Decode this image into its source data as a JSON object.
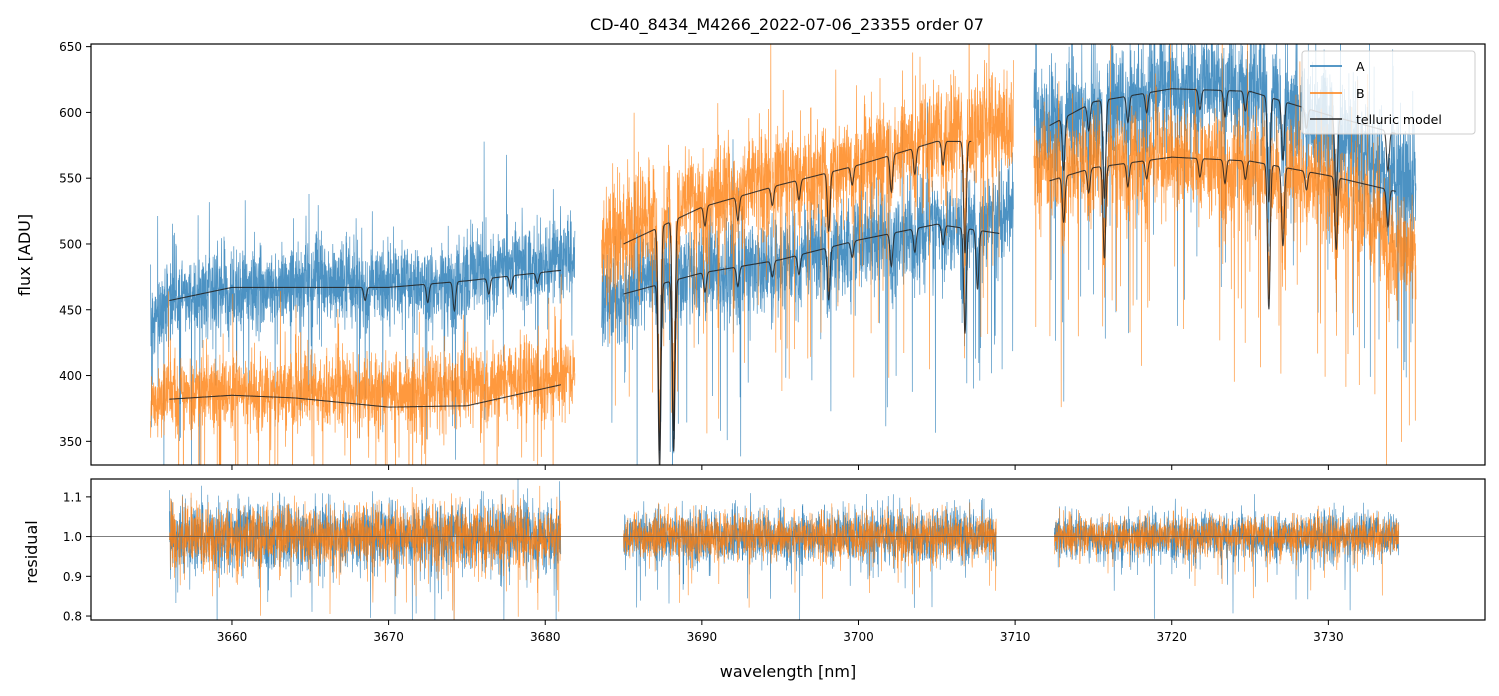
{
  "colors": {
    "A": "#1f77b4",
    "B": "#ff7f0e",
    "model": "#222222",
    "residual_ref": "#555555"
  },
  "chart_data": [
    {
      "id": "flux",
      "type": "line",
      "title": "CD-40_8434_M4266_2022-07-06_23355  order 07",
      "xlabel": "",
      "ylabel": "flux [ADU]",
      "xlim": [
        3651,
        3740
      ],
      "ylim": [
        332,
        652
      ],
      "xticks": [
        3660,
        3670,
        3680,
        3690,
        3700,
        3710,
        3720,
        3730
      ],
      "yticks": [
        350,
        400,
        450,
        500,
        550,
        600,
        650
      ],
      "xtick_labels_shown": false,
      "legend": {
        "placement": "top-right",
        "entries": [
          {
            "label": "A",
            "series": "A"
          },
          {
            "label": "B",
            "series": "B"
          },
          {
            "label": "telluric model",
            "series": "model"
          }
        ]
      },
      "segments": [
        {
          "x_start": 3654.8,
          "x_end": 3681.9,
          "A": {
            "level": [
              [
                3654.8,
                440
              ],
              [
                3656,
                460
              ],
              [
                3665,
                470
              ],
              [
                3672,
                470
              ],
              [
                3681.9,
                492
              ]
            ],
            "noise": 16,
            "spikes_up": 9,
            "spikes_down": 16
          },
          "B": {
            "level": [
              [
                3654.8,
                372
              ],
              [
                3656,
                388
              ],
              [
                3664,
                388
              ],
              [
                3672,
                388
              ],
              [
                3681.9,
                400
              ]
            ],
            "noise": 14,
            "spikes_up": 8,
            "spikes_down": 18
          },
          "model_A": {
            "x_start": 3656,
            "x_end": 3681,
            "level": [
              [
                3656,
                457
              ],
              [
                3660,
                467
              ],
              [
                3665,
                467
              ],
              [
                3670,
                467
              ],
              [
                3675,
                472
              ],
              [
                3681,
                480
              ]
            ],
            "lines": [
              [
                3668.5,
                10
              ],
              [
                3672.5,
                14
              ],
              [
                3674.2,
                22
              ],
              [
                3676.4,
                12
              ],
              [
                3677.8,
                10
              ],
              [
                3679.5,
                8
              ]
            ]
          },
          "model_B": {
            "x_start": 3656,
            "x_end": 3681,
            "level": [
              [
                3656,
                382
              ],
              [
                3660,
                385
              ],
              [
                3664,
                383
              ],
              [
                3670,
                376
              ],
              [
                3675,
                377
              ],
              [
                3681,
                393
              ]
            ],
            "lines": []
          }
        },
        {
          "x_start": 3683.6,
          "x_end": 3709.9,
          "A": {
            "level": [
              [
                3683.6,
                455
              ],
              [
                3686,
                470
              ],
              [
                3695,
                485
              ],
              [
                3700,
                500
              ],
              [
                3705,
                515
              ],
              [
                3709.9,
                525
              ]
            ],
            "noise": 18,
            "spikes_up": 7,
            "spikes_down": 22
          },
          "B": {
            "level": [
              [
                3683.6,
                500
              ],
              [
                3687,
                520
              ],
              [
                3693,
                545
              ],
              [
                3700,
                560
              ],
              [
                3705,
                585
              ],
              [
                3709.9,
                590
              ]
            ],
            "noise": 20,
            "spikes_up": 9,
            "spikes_down": 22
          },
          "model_A": {
            "x_start": 3685,
            "x_end": 3709,
            "level": [
              [
                3685,
                462
              ],
              [
                3690,
                478
              ],
              [
                3695,
                488
              ],
              [
                3700,
                503
              ],
              [
                3705,
                515
              ],
              [
                3709,
                508
              ]
            ],
            "lines": [
              [
                3687.3,
                140
              ],
              [
                3688.2,
                130
              ],
              [
                3690.2,
                15
              ],
              [
                3692.3,
                15
              ],
              [
                3694.5,
                12
              ],
              [
                3696.2,
                15
              ],
              [
                3698.1,
                40
              ],
              [
                3699.6,
                12
              ],
              [
                3702.1,
                25
              ],
              [
                3703.6,
                18
              ],
              [
                3705.4,
                15
              ],
              [
                3706.8,
                80
              ],
              [
                3707.6,
                45
              ]
            ]
          },
          "model_B": {
            "x_start": 3685,
            "x_end": 3707.2,
            "level": [
              [
                3685,
                500
              ],
              [
                3690,
                528
              ],
              [
                3695,
                545
              ],
              [
                3700,
                560
              ],
              [
                3705,
                578
              ],
              [
                3707.2,
                578
              ]
            ],
            "lines": [
              [
                3687.3,
                170
              ],
              [
                3688.2,
                160
              ],
              [
                3690.2,
                15
              ],
              [
                3692.3,
                18
              ],
              [
                3694.5,
                14
              ],
              [
                3696.2,
                15
              ],
              [
                3698.1,
                45
              ],
              [
                3699.6,
                14
              ],
              [
                3702.1,
                28
              ],
              [
                3703.6,
                20
              ],
              [
                3705.4,
                18
              ],
              [
                3706.8,
                85
              ]
            ]
          }
        },
        {
          "x_start": 3711.2,
          "x_end": 3735.6,
          "A": {
            "level": [
              [
                3711.2,
                590
              ],
              [
                3714,
                600
              ],
              [
                3720,
                620
              ],
              [
                3725,
                620
              ],
              [
                3730,
                590
              ],
              [
                3735.6,
                540
              ]
            ],
            "noise": 22,
            "spikes_up": 10,
            "spikes_down": 22
          },
          "B": {
            "level": [
              [
                3711.2,
                560
              ],
              [
                3714,
                560
              ],
              [
                3720,
                565
              ],
              [
                3725,
                560
              ],
              [
                3730,
                545
              ],
              [
                3735.6,
                490
              ]
            ],
            "noise": 20,
            "spikes_up": 8,
            "spikes_down": 24
          },
          "model_A": {
            "x_start": 3712.2,
            "x_end": 3734.3,
            "level": [
              [
                3712.2,
                590
              ],
              [
                3715,
                608
              ],
              [
                3720,
                618
              ],
              [
                3725,
                616
              ],
              [
                3730,
                598
              ],
              [
                3734.3,
                584
              ]
            ],
            "lines": [
              [
                3713.1,
                40
              ],
              [
                3714.7,
                20
              ],
              [
                3715.7,
                75
              ],
              [
                3717.2,
                20
              ],
              [
                3718.4,
                15
              ],
              [
                3721.8,
                15
              ],
              [
                3723.4,
                20
              ],
              [
                3724.7,
                15
              ],
              [
                3726.2,
                80
              ],
              [
                3727.1,
                45
              ],
              [
                3728.6,
                15
              ],
              [
                3730.5,
                60
              ],
              [
                3733.8,
                30
              ]
            ]
          },
          "model_B": {
            "x_start": 3712.2,
            "x_end": 3734.3,
            "level": [
              [
                3712.2,
                548
              ],
              [
                3715,
                558
              ],
              [
                3720,
                566
              ],
              [
                3725,
                563
              ],
              [
                3730,
                552
              ],
              [
                3734.3,
                540
              ]
            ],
            "lines": [
              [
                3713.1,
                35
              ],
              [
                3714.7,
                18
              ],
              [
                3715.7,
                70
              ],
              [
                3717.2,
                18
              ],
              [
                3718.4,
                14
              ],
              [
                3721.8,
                14
              ],
              [
                3723.4,
                18
              ],
              [
                3724.7,
                14
              ],
              [
                3726.2,
                110
              ],
              [
                3727.1,
                60
              ],
              [
                3728.6,
                14
              ],
              [
                3730.5,
                55
              ],
              [
                3733.8,
                28
              ]
            ]
          }
        }
      ]
    },
    {
      "id": "residual",
      "type": "line",
      "title": "",
      "xlabel": "wavelength [nm]",
      "ylabel": "residual",
      "xlim": [
        3651,
        3740
      ],
      "ylim": [
        0.79,
        1.145
      ],
      "xticks": [
        3660,
        3670,
        3680,
        3690,
        3700,
        3710,
        3720,
        3730
      ],
      "yticks": [
        0.8,
        0.9,
        1.0,
        1.1
      ],
      "reference_line": 1.0,
      "segments": [
        {
          "x_start": 3656,
          "x_end": 3681,
          "noise_A": 0.045,
          "noise_B": 0.04
        },
        {
          "x_start": 3685,
          "x_end": 3708.8,
          "noise_A": 0.035,
          "noise_B": 0.03
        },
        {
          "x_start": 3712.5,
          "x_end": 3734.5,
          "noise_A": 0.03,
          "noise_B": 0.025
        }
      ]
    }
  ]
}
